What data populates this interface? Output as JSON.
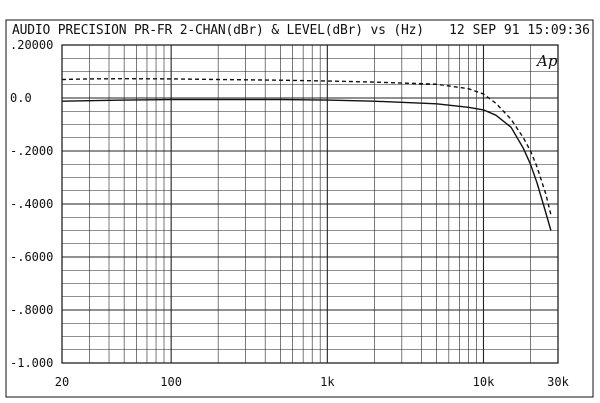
{
  "header": {
    "title": "AUDIO PRECISION PR-FR 2-CHAN(dBr) & LEVEL(dBr) vs  (Hz)",
    "timestamp": "12 SEP 91 15:09:36"
  },
  "logo": {
    "text": "Ap"
  },
  "chart_data": {
    "type": "line",
    "title": "AUDIO PRECISION PR-FR 2-CHAN(dBr) & LEVEL(dBr) vs  (Hz)",
    "xscale": "log",
    "xlim": [
      20,
      30000
    ],
    "ylim": [
      -1.0,
      0.2
    ],
    "grid": true,
    "x_tick_labels": [
      {
        "value": 20,
        "label": "20"
      },
      {
        "value": 100,
        "label": "100"
      },
      {
        "value": 1000,
        "label": "1k"
      },
      {
        "value": 10000,
        "label": "10k"
      },
      {
        "value": 30000,
        "label": "30k"
      }
    ],
    "y_tick_labels": [
      {
        "value": 0.2,
        "label": ".20000"
      },
      {
        "value": 0.0,
        "label": "0.0"
      },
      {
        "value": -0.2,
        "label": "-.2000"
      },
      {
        "value": -0.4,
        "label": "-.4000"
      },
      {
        "value": -0.6,
        "label": "-.6000"
      },
      {
        "value": -0.8,
        "label": "-.8000"
      },
      {
        "value": -1.0,
        "label": "-1.000"
      }
    ],
    "series": [
      {
        "style": "solid",
        "color": "#111111",
        "x": [
          20,
          30,
          50,
          100,
          200,
          500,
          1000,
          2000,
          5000,
          8000,
          10000,
          12000,
          15000,
          18000,
          20000,
          22000,
          25000,
          27000
        ],
        "y": [
          -0.012,
          -0.01,
          -0.008,
          -0.006,
          -0.006,
          -0.006,
          -0.008,
          -0.012,
          -0.022,
          -0.035,
          -0.045,
          -0.065,
          -0.11,
          -0.19,
          -0.25,
          -0.32,
          -0.43,
          -0.5
        ]
      },
      {
        "style": "dashed",
        "color": "#111111",
        "x": [
          20,
          30,
          50,
          100,
          200,
          500,
          1000,
          2000,
          5000,
          8000,
          10000,
          12000,
          15000,
          18000,
          20000,
          22000,
          25000,
          27000
        ],
        "y": [
          0.07,
          0.072,
          0.073,
          0.072,
          0.07,
          0.067,
          0.064,
          0.06,
          0.052,
          0.035,
          0.015,
          -0.02,
          -0.08,
          -0.15,
          -0.2,
          -0.26,
          -0.36,
          -0.44
        ]
      }
    ]
  }
}
